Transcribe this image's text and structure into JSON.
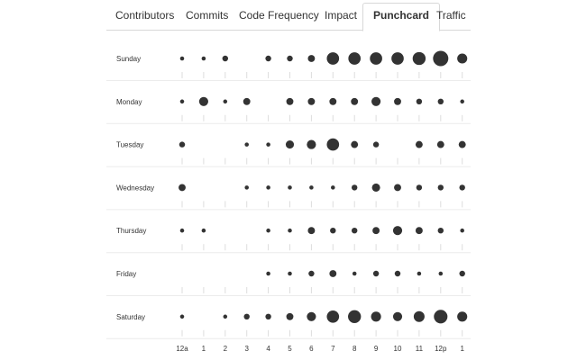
{
  "tabs": [
    {
      "label": "Contributors",
      "active": false
    },
    {
      "label": "Commits",
      "active": false
    },
    {
      "label": "Code Frequency",
      "active": false
    },
    {
      "label": "Impact",
      "active": false
    },
    {
      "label": "Punchcard",
      "active": true
    },
    {
      "label": "Traffic",
      "active": false
    }
  ],
  "chart_data": {
    "type": "scatter",
    "days": [
      "Sunday",
      "Monday",
      "Tuesday",
      "Wednesday",
      "Thursday",
      "Friday",
      "Saturday"
    ],
    "hours": [
      "12a",
      "1",
      "2",
      "3",
      "4",
      "5",
      "6",
      "7",
      "8",
      "9",
      "10",
      "11",
      "12p",
      "1"
    ],
    "dot_color": "#333333",
    "grid": true,
    "values": [
      [
        1,
        1,
        2,
        0,
        2,
        2,
        3,
        9,
        9,
        9,
        9,
        10,
        14,
        6
      ],
      [
        1,
        5,
        1,
        3,
        0,
        3,
        3,
        3,
        3,
        5,
        3,
        2,
        2,
        1
      ],
      [
        2,
        0,
        0,
        1,
        1,
        4,
        5,
        9,
        3,
        2,
        0,
        3,
        3,
        3
      ],
      [
        3,
        0,
        0,
        1,
        1,
        1,
        1,
        1,
        2,
        4,
        3,
        2,
        2,
        2
      ],
      [
        1,
        1,
        0,
        0,
        1,
        1,
        3,
        2,
        2,
        3,
        5,
        3,
        2,
        1
      ],
      [
        0,
        0,
        0,
        0,
        1,
        1,
        2,
        3,
        1,
        2,
        2,
        1,
        1,
        2
      ],
      [
        1,
        0,
        1,
        2,
        2,
        3,
        5,
        9,
        10,
        6,
        5,
        7,
        11,
        6
      ]
    ]
  }
}
